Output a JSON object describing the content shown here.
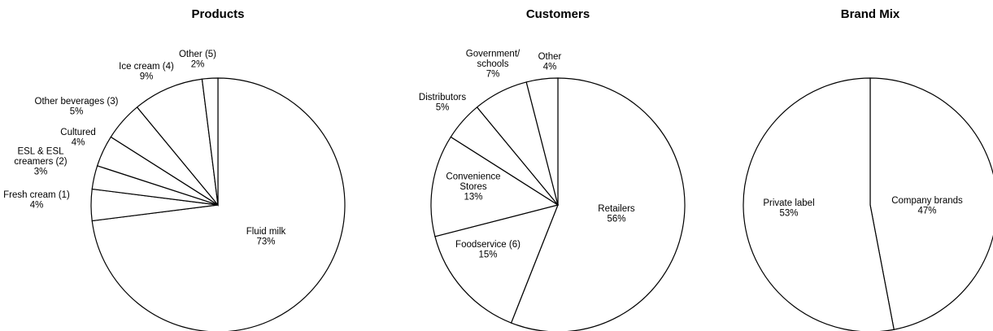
{
  "chart_data": [
    {
      "type": "pie",
      "title": "Products",
      "slices": [
        {
          "label": "Fluid milk",
          "value": 73,
          "value_label": "73%"
        },
        {
          "label": "Fresh cream (1)",
          "value": 4,
          "value_label": "4%"
        },
        {
          "label": "ESL & ESL creamers (2)",
          "value": 3,
          "value_label": "3%"
        },
        {
          "label": "Cultured",
          "value": 4,
          "value_label": "4%"
        },
        {
          "label": "Other beverages (3)",
          "value": 5,
          "value_label": "5%"
        },
        {
          "label": "Ice cream (4)",
          "value": 9,
          "value_label": "9%"
        },
        {
          "label": "Other (5)",
          "value": 2,
          "value_label": "2%"
        }
      ]
    },
    {
      "type": "pie",
      "title": "Customers",
      "slices": [
        {
          "label": "Retailers",
          "value": 56,
          "value_label": "56%"
        },
        {
          "label": "Foodservice (6)",
          "value": 15,
          "value_label": "15%"
        },
        {
          "label": "Convenience Stores",
          "value": 13,
          "value_label": "13%"
        },
        {
          "label": "Distributors",
          "value": 5,
          "value_label": "5%"
        },
        {
          "label": "Government/ schools",
          "value": 7,
          "value_label": "7%"
        },
        {
          "label": "Other",
          "value": 4,
          "value_label": "4%"
        }
      ]
    },
    {
      "type": "pie",
      "title": "Brand Mix",
      "slices": [
        {
          "label": "Company brands",
          "value": 47,
          "value_label": "47%"
        },
        {
          "label": "Private label",
          "value": 53,
          "value_label": "53%"
        }
      ]
    }
  ]
}
